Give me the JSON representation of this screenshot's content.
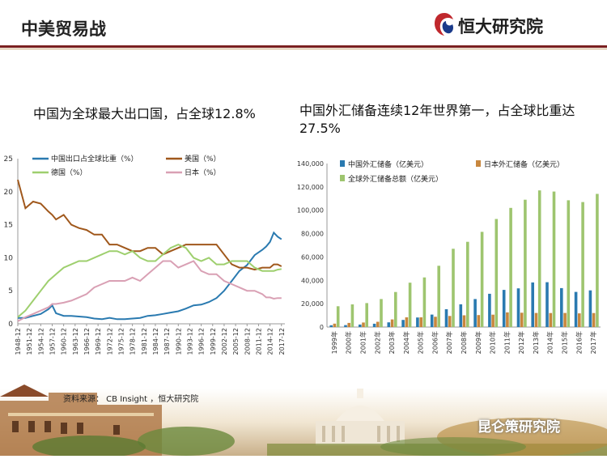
{
  "header": {
    "title": "中美贸易战",
    "logo_text": "恒大研究院"
  },
  "captions": {
    "left": "中国为全球最大出口国，占全球12.8%",
    "right": "中国外汇储备连续12年世界第一，占全球比重达27.5%"
  },
  "footer": {
    "source": "资料来源： CB Insight ，恒大研究院",
    "watermark": "昆仑策研究院"
  },
  "colors": {
    "china": "#2a7ab0",
    "us": "#a0581c",
    "germany": "#9ecf6e",
    "japan": "#d9a0b4",
    "header_rule": "#7a1f1f"
  },
  "chart_data": [
    {
      "type": "line",
      "title": "",
      "xlabel": "",
      "ylabel": "",
      "ylim": [
        0,
        25
      ],
      "yticks": [
        0,
        5,
        10,
        15,
        20,
        25
      ],
      "xticks": [
        "1948-12",
        "1951-12",
        "1954-12",
        "1957-12",
        "1960-12",
        "1963-12",
        "1966-12",
        "1969-12",
        "1972-12",
        "1975-12",
        "1978-12",
        "1981-12",
        "1984-12",
        "1987-12",
        "1990-12",
        "1993-12",
        "1996-12",
        "1999-12",
        "2002-12",
        "2005-12",
        "2008-12",
        "2011-12",
        "2014-12",
        "2017-12"
      ],
      "x": [
        1948,
        1950,
        1952,
        1954,
        1956,
        1957,
        1958,
        1960,
        1962,
        1964,
        1966,
        1968,
        1970,
        1972,
        1974,
        1976,
        1978,
        1980,
        1982,
        1984,
        1986,
        1988,
        1990,
        1992,
        1994,
        1996,
        1998,
        2000,
        2002,
        2004,
        2006,
        2008,
        2010,
        2012,
        2013,
        2014,
        2015,
        2016,
        2017
      ],
      "series": [
        {
          "name": "中国出口占全球比重（%）",
          "color": "#2a7ab0",
          "values": [
            0.9,
            0.9,
            1.2,
            1.5,
            2.2,
            2.8,
            1.6,
            1.2,
            1.2,
            1.1,
            1.0,
            0.8,
            0.7,
            0.9,
            0.7,
            0.7,
            0.8,
            0.9,
            1.2,
            1.3,
            1.5,
            1.7,
            1.9,
            2.3,
            2.8,
            2.9,
            3.3,
            3.9,
            5.0,
            6.5,
            8.0,
            8.9,
            10.4,
            11.2,
            11.7,
            12.4,
            13.8,
            13.2,
            12.8
          ]
        },
        {
          "name": "美国（%）",
          "color": "#a0581c",
          "values": [
            21.8,
            17.5,
            18.5,
            18.2,
            17.0,
            16.5,
            15.8,
            16.5,
            15.0,
            14.5,
            14.2,
            13.5,
            13.5,
            12.0,
            12.0,
            11.5,
            11.0,
            11.0,
            11.5,
            11.5,
            10.5,
            11.0,
            11.5,
            12.0,
            12.0,
            12.0,
            12.0,
            12.0,
            10.5,
            9.0,
            8.5,
            8.5,
            8.2,
            8.5,
            8.5,
            8.5,
            9.0,
            9.0,
            8.7
          ]
        },
        {
          "name": "德国（%）",
          "color": "#9ecf6e",
          "values": [
            1.0,
            2.0,
            3.5,
            5.0,
            6.5,
            7.0,
            7.5,
            8.5,
            9.0,
            9.5,
            9.5,
            10.0,
            10.5,
            11.0,
            11.0,
            10.5,
            11.0,
            10.0,
            9.5,
            9.5,
            10.5,
            11.5,
            12.0,
            11.5,
            10.0,
            9.5,
            10.0,
            9.0,
            9.0,
            9.5,
            9.5,
            9.5,
            8.5,
            8.0,
            8.0,
            8.0,
            8.0,
            8.2,
            8.3
          ]
        },
        {
          "name": "日本（%）",
          "color": "#d9a0b4",
          "values": [
            0.4,
            1.0,
            1.5,
            2.0,
            2.5,
            3.0,
            3.0,
            3.2,
            3.5,
            4.0,
            4.5,
            5.5,
            6.0,
            6.5,
            6.5,
            6.5,
            7.0,
            6.5,
            7.5,
            8.5,
            9.5,
            9.5,
            8.5,
            9.0,
            9.5,
            8.0,
            7.5,
            7.5,
            6.5,
            6.0,
            5.5,
            5.0,
            5.0,
            4.5,
            4.0,
            4.0,
            3.8,
            3.9,
            3.9
          ]
        }
      ]
    },
    {
      "type": "bar",
      "title": "",
      "xlabel": "",
      "ylabel": "",
      "ylim": [
        0,
        140000
      ],
      "yticks": [
        "0",
        "20,000",
        "40,000",
        "60,000",
        "80,000",
        "100,000",
        "120,000",
        "140,000"
      ],
      "categories": [
        "1999年",
        "2000年",
        "2001年",
        "2002年",
        "2003年",
        "2004年",
        "2005年",
        "2006年",
        "2007年",
        "2008年",
        "2009年",
        "2010年",
        "2011年",
        "2012年",
        "2013年",
        "2014年",
        "2015年",
        "2016年",
        "2017年"
      ],
      "series": [
        {
          "name": "中国外汇储备（亿美元）",
          "color": "#2a7ab0",
          "values": [
            1547,
            1656,
            2122,
            2864,
            4033,
            6099,
            8189,
            10663,
            15282,
            19460,
            23992,
            28473,
            31812,
            33116,
            38213,
            38430,
            33304,
            30105,
            31399
          ]
        },
        {
          "name": "日本外汇储备（亿美元）",
          "color": "#c8873e",
          "values": [
            2881,
            3549,
            3878,
            4515,
            6529,
            8288,
            8290,
            8791,
            9526,
            10036,
            10240,
            10612,
            12579,
            12271,
            12025,
            12004,
            12076,
            11708,
            12019
          ]
        },
        {
          "name": "全球外汇储备总额（亿美元）",
          "color": "#9ec56f",
          "values": [
            17800,
            19400,
            20500,
            24000,
            30000,
            38000,
            42500,
            52500,
            67000,
            73000,
            81500,
            92500,
            102000,
            109000,
            117000,
            116000,
            108500,
            107000,
            114000
          ]
        }
      ]
    }
  ]
}
